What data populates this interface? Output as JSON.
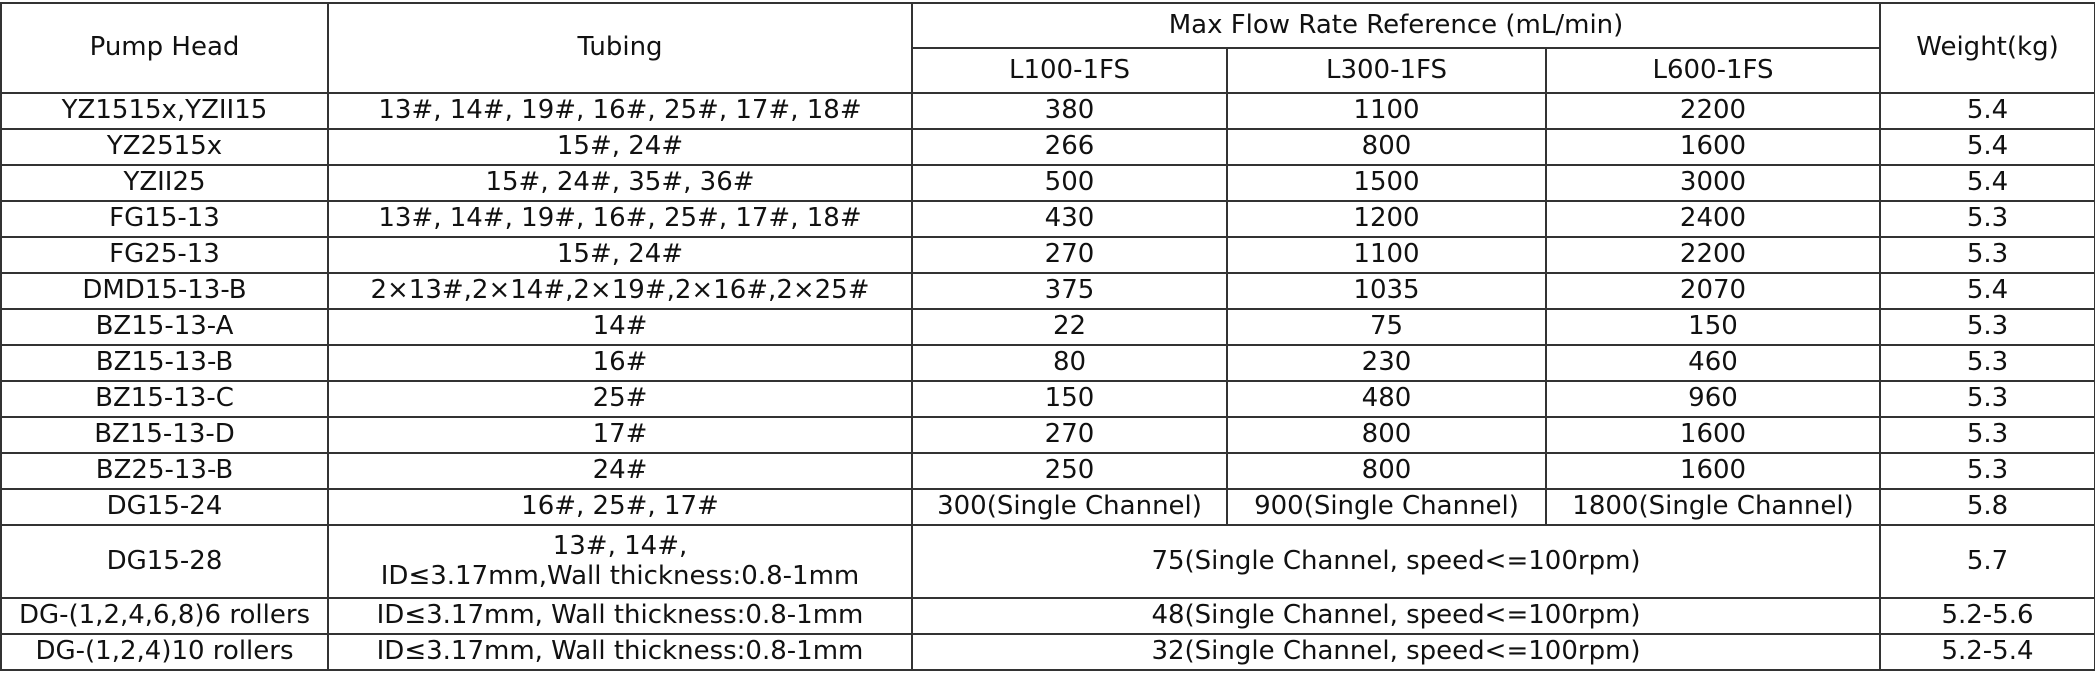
{
  "table": {
    "header": {
      "pump_head": "Pump Head",
      "tubing": "Tubing",
      "flow_group": "Max Flow Rate Reference (mL/min)",
      "weight": "Weight(kg)",
      "models": [
        "L100-1FS",
        "L300-1FS",
        "L600-1FS"
      ]
    },
    "rows": [
      {
        "pump_head": "YZ1515x,YZII15",
        "tubing": [
          "13#, 14#, 19#, 16#, 25#, 17#, 18#"
        ],
        "flow": [
          "380",
          "1100",
          "2200"
        ],
        "weight": "5.4"
      },
      {
        "pump_head": "YZ2515x",
        "tubing": [
          "15#, 24#"
        ],
        "flow": [
          "266",
          "800",
          "1600"
        ],
        "weight": "5.4"
      },
      {
        "pump_head": "YZII25",
        "tubing": [
          "15#, 24#, 35#, 36#"
        ],
        "flow": [
          "500",
          "1500",
          "3000"
        ],
        "weight": "5.4"
      },
      {
        "pump_head": "FG15-13",
        "tubing": [
          "13#, 14#, 19#, 16#, 25#, 17#, 18#"
        ],
        "flow": [
          "430",
          "1200",
          "2400"
        ],
        "weight": "5.3"
      },
      {
        "pump_head": "FG25-13",
        "tubing": [
          "15#, 24#"
        ],
        "flow": [
          "270",
          "1100",
          "2200"
        ],
        "weight": "5.3"
      },
      {
        "pump_head": "DMD15-13-B",
        "tubing": [
          "2×13#,2×14#,2×19#,2×16#,2×25#"
        ],
        "flow": [
          "375",
          "1035",
          "2070"
        ],
        "weight": "5.4"
      },
      {
        "pump_head": "BZ15-13-A",
        "tubing": [
          "14#"
        ],
        "flow": [
          "22",
          "75",
          "150"
        ],
        "weight": "5.3"
      },
      {
        "pump_head": "BZ15-13-B",
        "tubing": [
          "16#"
        ],
        "flow": [
          "80",
          "230",
          "460"
        ],
        "weight": "5.3"
      },
      {
        "pump_head": "BZ15-13-C",
        "tubing": [
          "25#"
        ],
        "flow": [
          "150",
          "480",
          "960"
        ],
        "weight": "5.3"
      },
      {
        "pump_head": "BZ15-13-D",
        "tubing": [
          "17#"
        ],
        "flow": [
          "270",
          "800",
          "1600"
        ],
        "weight": "5.3"
      },
      {
        "pump_head": "BZ25-13-B",
        "tubing": [
          "24#"
        ],
        "flow": [
          "250",
          "800",
          "1600"
        ],
        "weight": "5.3"
      },
      {
        "pump_head": "DG15-24",
        "tubing": [
          "16#, 25#, 17#"
        ],
        "flow": [
          "300(Single Channel)",
          "900(Single Channel)",
          "1800(Single Channel)"
        ],
        "weight": "5.8"
      },
      {
        "pump_head": "DG15-28",
        "tubing": [
          "13#, 14#,",
          "ID≤3.17mm,Wall thickness:0.8-1mm"
        ],
        "flow": [
          "75(Single Channel, speed<=100rpm)"
        ],
        "weight": "5.7"
      },
      {
        "pump_head": "DG-(1,2,4,6,8)6 rollers",
        "tubing": [
          "ID≤3.17mm, Wall thickness:0.8-1mm"
        ],
        "flow": [
          "48(Single Channel, speed<=100rpm)"
        ],
        "weight": "5.2-5.6"
      },
      {
        "pump_head": "DG-(1,2,4)10 rollers",
        "tubing": [
          "ID≤3.17mm, Wall thickness:0.8-1mm"
        ],
        "flow": [
          "32(Single Channel, speed<=100rpm)"
        ],
        "weight": "5.2-5.4"
      }
    ]
  }
}
